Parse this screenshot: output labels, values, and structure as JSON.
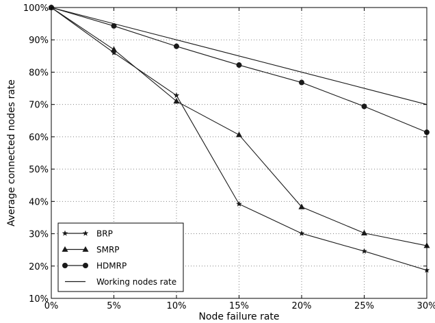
{
  "chart_data": {
    "type": "line",
    "xlabel": "Node failure rate",
    "ylabel": "Average connected nodes rate",
    "x": [
      0,
      5,
      10,
      15,
      20,
      25,
      30
    ],
    "x_tick_labels": [
      "0%",
      "5%",
      "10%",
      "15%",
      "20%",
      "25%",
      "30%"
    ],
    "xlim": [
      0,
      30
    ],
    "y_ticks": [
      10,
      20,
      30,
      40,
      50,
      60,
      70,
      80,
      90,
      100
    ],
    "y_tick_labels": [
      "10%",
      "20%",
      "30%",
      "40%",
      "50%",
      "60%",
      "70%",
      "80%",
      "90%",
      "100%"
    ],
    "ylim": [
      10,
      100
    ],
    "grid": true,
    "legend_position": "bottom-left",
    "series": [
      {
        "name": "BRP",
        "marker": "star",
        "values": [
          100,
          86,
          72.8,
          39.2,
          30.1,
          24.6,
          18.7
        ]
      },
      {
        "name": "SMRP",
        "marker": "triangle",
        "values": [
          100,
          87,
          71,
          60.6,
          38.3,
          30.2,
          26.3
        ]
      },
      {
        "name": "HDMRP",
        "marker": "circle",
        "values": [
          100,
          94.3,
          88,
          82.2,
          76.8,
          69.4,
          61.4
        ]
      },
      {
        "name": "Working nodes rate",
        "marker": "none",
        "values": [
          100,
          95,
          90,
          85,
          80,
          75,
          70
        ]
      }
    ]
  },
  "colors": {
    "line": "#1a1a1a",
    "grid": "#808080",
    "axis": "#000000",
    "background": "#ffffff"
  }
}
